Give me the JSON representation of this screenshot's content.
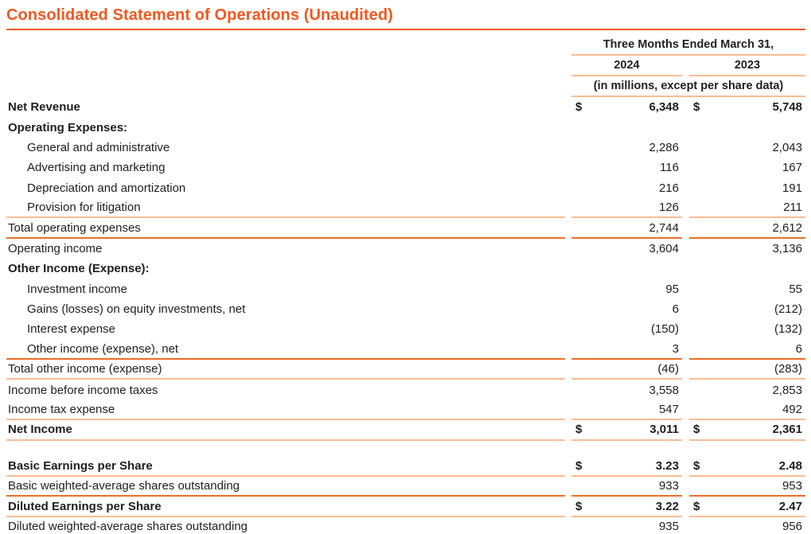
{
  "title": "Consolidated Statement of Operations (Unaudited)",
  "colors": {
    "accent_orange": "#F1581F",
    "rule_light": "#F8BC94",
    "rule_dark": "#EC6F26",
    "text": "#221D1E"
  },
  "table": {
    "period_header": "Three Months Ended March 31,",
    "col_headers": [
      "2024",
      "2023"
    ],
    "units_note": "(in millions, except per share data)",
    "rows": [
      {
        "label": "Net Revenue",
        "bold": true,
        "dollar": true,
        "v2024": "6,348",
        "v2023": "5,748",
        "border": "none"
      },
      {
        "label": "Operating Expenses:",
        "bold": true,
        "v2024": "",
        "v2023": "",
        "border": "none"
      },
      {
        "label": "General and administrative",
        "indent": 1,
        "v2024": "2,286",
        "v2023": "2,043",
        "border": "none"
      },
      {
        "label": "Advertising and marketing",
        "indent": 1,
        "v2024": "116",
        "v2023": "167",
        "border": "none"
      },
      {
        "label": "Depreciation and amortization",
        "indent": 1,
        "v2024": "216",
        "v2023": "191",
        "border": "none"
      },
      {
        "label": "Provision for litigation",
        "indent": 1,
        "v2024": "126",
        "v2023": "211",
        "border": "light"
      },
      {
        "label": "Total operating expenses",
        "v2024": "2,744",
        "v2023": "2,612",
        "border": "dark"
      },
      {
        "label": "Operating income",
        "v2024": "3,604",
        "v2023": "3,136",
        "border": "none"
      },
      {
        "label": "Other Income (Expense):",
        "bold": true,
        "v2024": "",
        "v2023": "",
        "border": "none"
      },
      {
        "label": "Investment income",
        "indent": 1,
        "v2024": "95",
        "v2023": "55",
        "border": "none"
      },
      {
        "label": "Gains (losses) on equity investments, net",
        "indent": 1,
        "v2024": "6",
        "v2023": "(212)",
        "border": "none"
      },
      {
        "label": "Interest expense",
        "indent": 1,
        "v2024": "(150)",
        "v2023": "(132)",
        "border": "none"
      },
      {
        "label": "Other income (expense), net",
        "indent": 1,
        "v2024": "3",
        "v2023": "6",
        "border": "dark"
      },
      {
        "label": "Total other income (expense)",
        "v2024": "(46)",
        "v2023": "(283)",
        "border": "light"
      },
      {
        "label": "Income before income taxes",
        "v2024": "3,558",
        "v2023": "2,853",
        "border": "none"
      },
      {
        "label": "Income tax expense",
        "v2024": "547",
        "v2023": "492",
        "border": "light"
      },
      {
        "label": "Net Income",
        "bold": true,
        "dollar": true,
        "v2024": "3,011",
        "v2023": "2,361",
        "border": "light"
      },
      {
        "spacer": true
      },
      {
        "label": "Basic Earnings per Share",
        "bold": true,
        "dollar": true,
        "v2024": "3.23",
        "v2023": "2.48",
        "border": "light"
      },
      {
        "label": "Basic weighted-average shares outstanding",
        "v2024": "933",
        "v2023": "953",
        "border": "dark"
      },
      {
        "label": "Diluted Earnings per Share",
        "bold": true,
        "dollar": true,
        "v2024": "3.22",
        "v2023": "2.47",
        "border": "light"
      },
      {
        "label": "Diluted weighted-average shares outstanding",
        "v2024": "935",
        "v2023": "956",
        "border": "light"
      }
    ]
  }
}
